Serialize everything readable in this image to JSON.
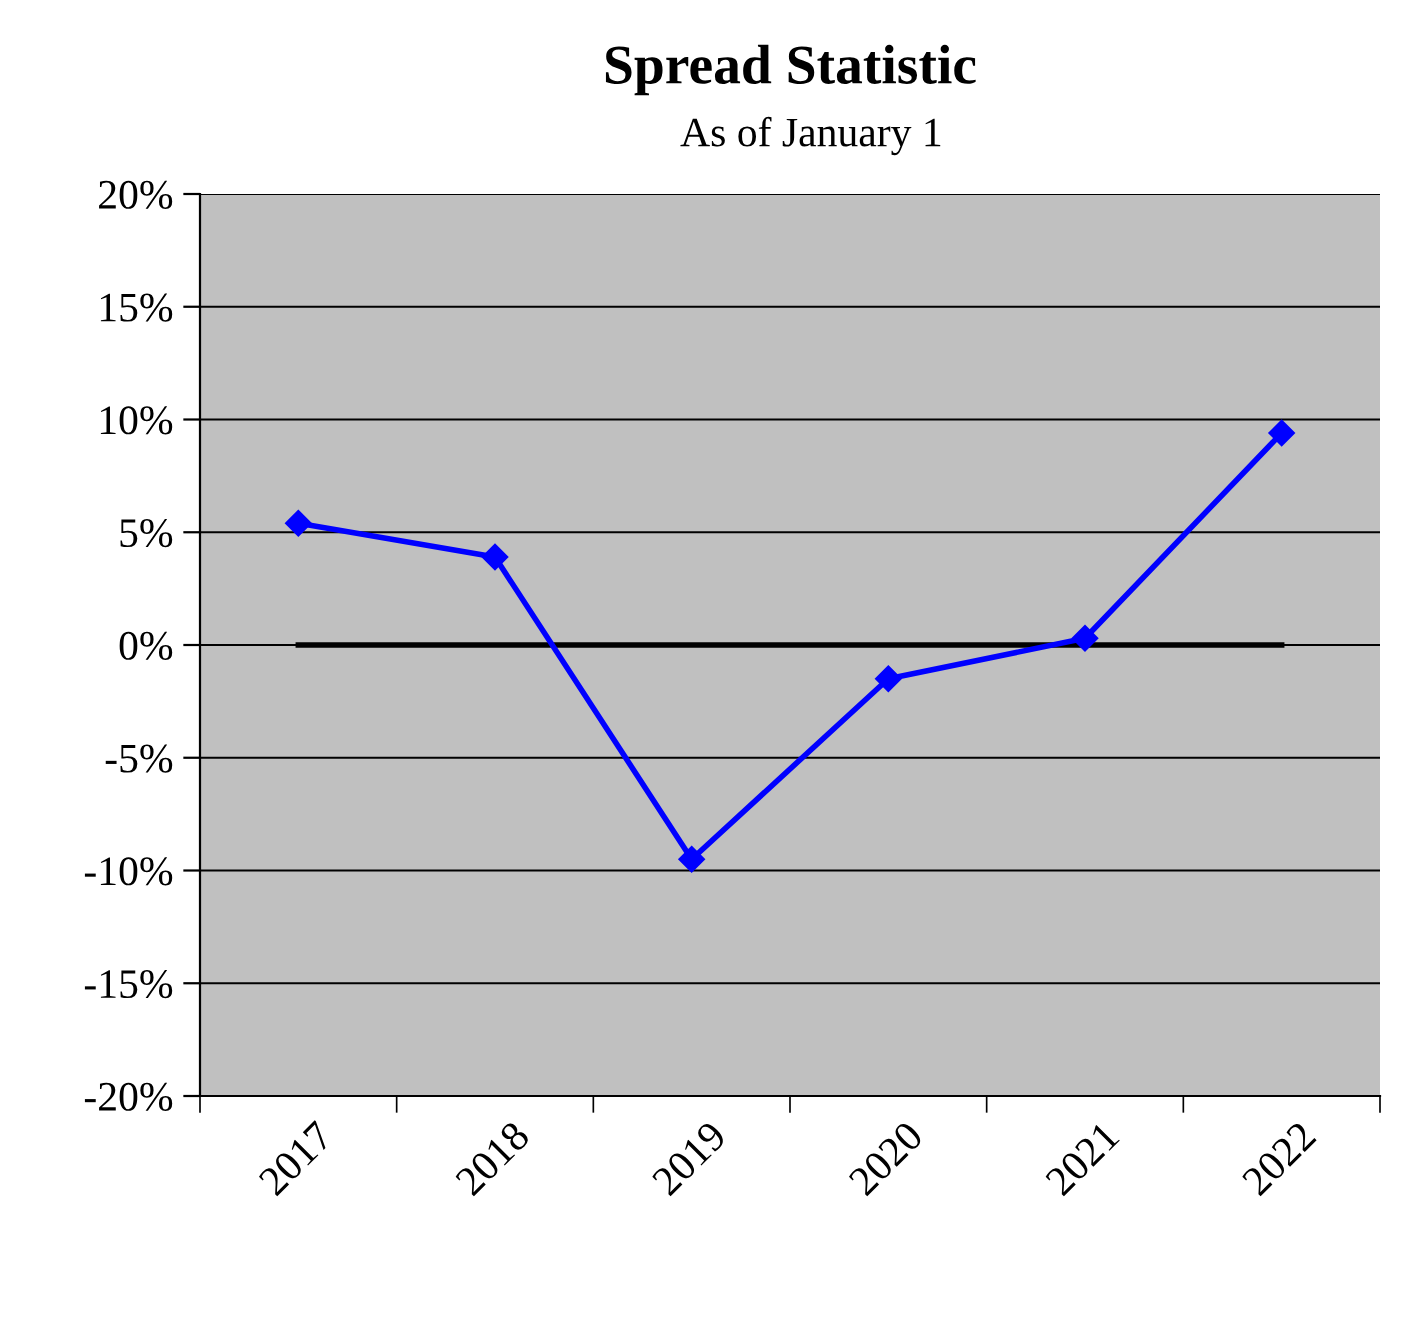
{
  "chart_data": {
    "type": "line",
    "title": "Spread Statistic",
    "subtitle": "As of January 1",
    "categories": [
      "2017",
      "2018",
      "2019",
      "2020",
      "2021",
      "2022"
    ],
    "series": [
      {
        "color": "#0000ff",
        "values": [
          5.4,
          3.9,
          -9.5,
          -1.5,
          0.3,
          9.4
        ]
      }
    ],
    "ylim": [
      -20,
      20
    ],
    "yticks": [
      {
        "value": -20,
        "label": "-20%"
      },
      {
        "value": -15,
        "label": "-15%"
      },
      {
        "value": -10,
        "label": "-10%"
      },
      {
        "value": -5,
        "label": "-5%"
      },
      {
        "value": 0,
        "label": "0%"
      },
      {
        "value": 5,
        "label": "5%"
      },
      {
        "value": 10,
        "label": "10%"
      },
      {
        "value": 15,
        "label": "15%"
      },
      {
        "value": 20,
        "label": "20%"
      }
    ],
    "ref_lines": [
      {
        "axis": "y",
        "value": 0,
        "color": "#000000"
      }
    ],
    "grid": "y",
    "marker": "diamond",
    "line_style": "solid"
  }
}
